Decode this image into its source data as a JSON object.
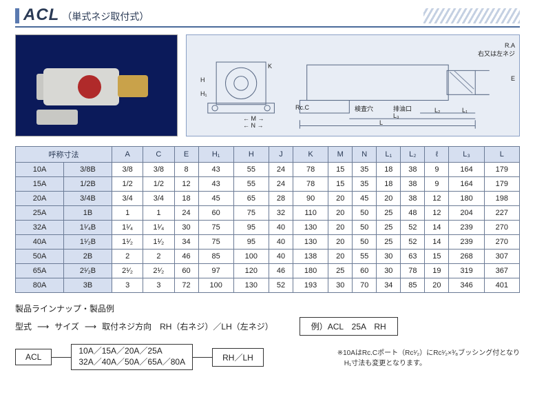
{
  "title": {
    "main": "ACL",
    "sub": "（単式ネジ取付式）"
  },
  "diagram_labels": {
    "ra": "R.A",
    "ra_note": "右又は左ネジ",
    "kensa": "検査穴",
    "haiyu": "排油口",
    "rcc": "Rc.C",
    "A": "A",
    "C": "C",
    "E": "E",
    "H1": "H₁",
    "H": "H",
    "J": "J",
    "K": "K",
    "M": "M",
    "N": "N",
    "L1": "L₁",
    "L2": "L₂",
    "l": "ℓ",
    "L3": "L₃",
    "L": "L"
  },
  "table": {
    "name_header": "呼称寸法",
    "columns": [
      "A",
      "C",
      "E",
      "H₁",
      "H",
      "J",
      "K",
      "M",
      "N",
      "L₁",
      "L₂",
      "ℓ",
      "L₃",
      "L"
    ],
    "rows": [
      {
        "name_a": "10A",
        "name_b": "3/8B",
        "vals": [
          "3/8",
          "3/8",
          "8",
          "43",
          "55",
          "24",
          "78",
          "15",
          "35",
          "18",
          "38",
          "9",
          "164",
          "179"
        ]
      },
      {
        "name_a": "15A",
        "name_b": "1/2B",
        "vals": [
          "1/2",
          "1/2",
          "12",
          "43",
          "55",
          "24",
          "78",
          "15",
          "35",
          "18",
          "38",
          "9",
          "164",
          "179"
        ]
      },
      {
        "name_a": "20A",
        "name_b": "3/4B",
        "vals": [
          "3/4",
          "3/4",
          "18",
          "45",
          "65",
          "28",
          "90",
          "20",
          "45",
          "20",
          "38",
          "12",
          "180",
          "198"
        ]
      },
      {
        "name_a": "25A",
        "name_b": "1B",
        "vals": [
          "1",
          "1",
          "24",
          "60",
          "75",
          "32",
          "110",
          "20",
          "50",
          "25",
          "48",
          "12",
          "204",
          "227"
        ]
      },
      {
        "name_a": "32A",
        "name_b": "1¹⁄₄B",
        "vals": [
          "1¹⁄₄",
          "1¹⁄₄",
          "30",
          "75",
          "95",
          "40",
          "130",
          "20",
          "50",
          "25",
          "52",
          "14",
          "239",
          "270"
        ]
      },
      {
        "name_a": "40A",
        "name_b": "1¹⁄₂B",
        "vals": [
          "1¹⁄₂",
          "1¹⁄₂",
          "34",
          "75",
          "95",
          "40",
          "130",
          "20",
          "50",
          "25",
          "52",
          "14",
          "239",
          "270"
        ]
      },
      {
        "name_a": "50A",
        "name_b": "2B",
        "vals": [
          "2",
          "2",
          "46",
          "85",
          "100",
          "40",
          "138",
          "20",
          "55",
          "30",
          "63",
          "15",
          "268",
          "307"
        ]
      },
      {
        "name_a": "65A",
        "name_b": "2¹⁄₂B",
        "vals": [
          "2¹⁄₂",
          "2¹⁄₂",
          "60",
          "97",
          "120",
          "46",
          "180",
          "25",
          "60",
          "30",
          "78",
          "19",
          "319",
          "367"
        ]
      },
      {
        "name_a": "80A",
        "name_b": "3B",
        "vals": [
          "3",
          "3",
          "72",
          "100",
          "130",
          "52",
          "193",
          "30",
          "70",
          "34",
          "85",
          "20",
          "346",
          "401"
        ]
      }
    ]
  },
  "lineup": {
    "header": "製品ラインナップ・製品例",
    "katashiki": "型式",
    "size": "サイズ",
    "neji_label": "取付ネジ方向　RH（右ネジ）／LH（左ネジ）",
    "example_label": "例）ACL　25A　RH",
    "box_model": "ACL",
    "box_sizes_l1": "10A／15A／20A／25A",
    "box_sizes_l2": "32A／40A／50A／65A／80A",
    "box_rhlh": "RH／LH",
    "note": "※10AはRc.Cポート（Rc¹⁄₂）にRc¹⁄₂×³⁄₈ブッシング付となり\n　H₁寸法も変更となります。"
  }
}
